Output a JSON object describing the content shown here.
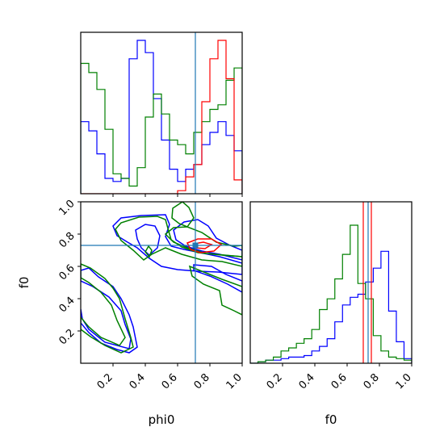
{
  "chart_data": {
    "type": "corner",
    "parameters": [
      "phi0",
      "f0"
    ],
    "axis_labels": {
      "x_bottom_left": "phi0",
      "x_bottom_right": "f0",
      "y_left": "f0"
    },
    "ranges": {
      "phi0": [
        0,
        1
      ],
      "f0": [
        0,
        1
      ]
    },
    "ticks": {
      "phi0": [
        "0.2",
        "0.4",
        "0.6",
        "0.8",
        "1.0"
      ],
      "f0": [
        "0.2",
        "0.4",
        "0.6",
        "0.8",
        "1.0"
      ]
    },
    "truth": {
      "phi0": 0.71,
      "f0": 0.73
    },
    "truth_color": "#1f77b4",
    "series": [
      {
        "color": "#0000ff",
        "hist_phi0": [
          0.47,
          0.41,
          0.26,
          0.1,
          0.08,
          0.1,
          0.88,
          1.0,
          0.92,
          0.62,
          0.35,
          0.16,
          0.08,
          0.16,
          0.19,
          0.32,
          0.4,
          0.47,
          0.38,
          0.28
        ],
        "hist_f0": [
          0.0,
          0.01,
          0.02,
          0.02,
          0.03,
          0.04,
          0.04,
          0.05,
          0.08,
          0.11,
          0.16,
          0.27,
          0.38,
          0.43,
          0.45,
          0.53,
          0.62,
          0.73,
          0.34,
          0.14,
          0.03
        ]
      },
      {
        "color": "#008000",
        "hist_phi0": [
          0.85,
          0.79,
          0.68,
          0.42,
          0.13,
          0.1,
          0.05,
          0.17,
          0.5,
          0.65,
          0.52,
          0.35,
          0.32,
          0.26,
          0.4,
          0.47,
          0.55,
          0.58,
          0.74,
          0.82
        ],
        "hist_f0": [
          0.0,
          0.01,
          0.02,
          0.04,
          0.08,
          0.1,
          0.13,
          0.16,
          0.22,
          0.35,
          0.42,
          0.55,
          0.71,
          0.9,
          0.52,
          0.42,
          0.18,
          0.08,
          0.04,
          0.03,
          0.02
        ]
      },
      {
        "color": "#ff0000",
        "hist_phi0": [
          0.0,
          0.0,
          0.0,
          0.0,
          0.0,
          0.0,
          0.0,
          0.0,
          0.0,
          0.0,
          0.0,
          0.0,
          0.02,
          0.11,
          0.19,
          0.6,
          0.88,
          1.0,
          0.75,
          0.09
        ],
        "f0_band": [
          0.7,
          0.75
        ]
      }
    ]
  }
}
